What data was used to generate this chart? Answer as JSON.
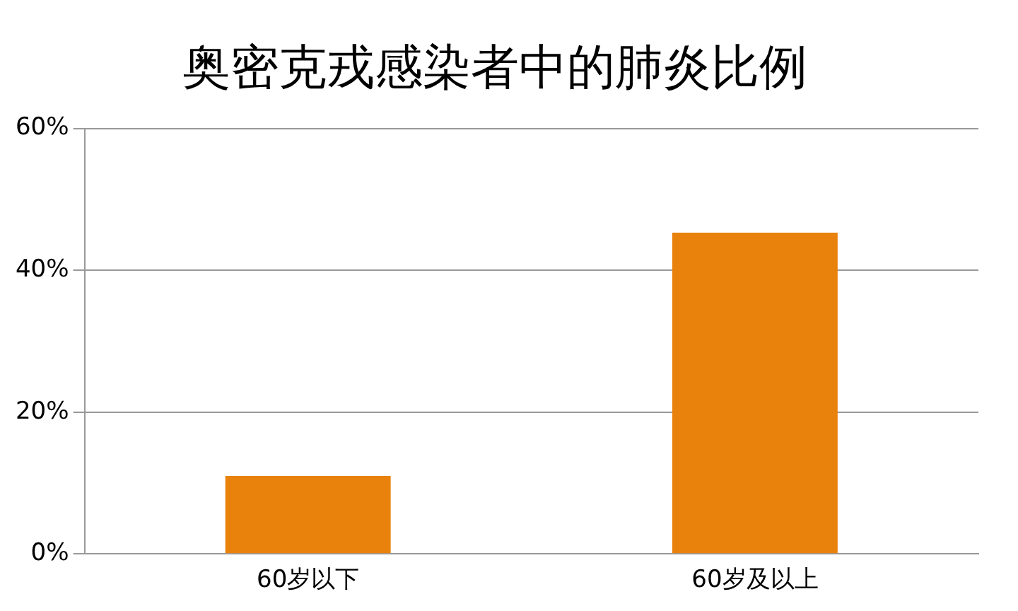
{
  "chart_data": {
    "type": "bar",
    "title": "奥密克戎感染者中的肺炎比例",
    "categories": [
      "60岁以下",
      "60岁及以上"
    ],
    "values": [
      11,
      45.3
    ],
    "color": "#e8820c",
    "ylim": [
      0,
      60
    ],
    "yticks": [
      {
        "value": 0,
        "label": "0%"
      },
      {
        "value": 20,
        "label": "20%"
      },
      {
        "value": 40,
        "label": "40%"
      },
      {
        "value": 60,
        "label": "60%"
      }
    ],
    "grid": "y",
    "legend": false
  }
}
